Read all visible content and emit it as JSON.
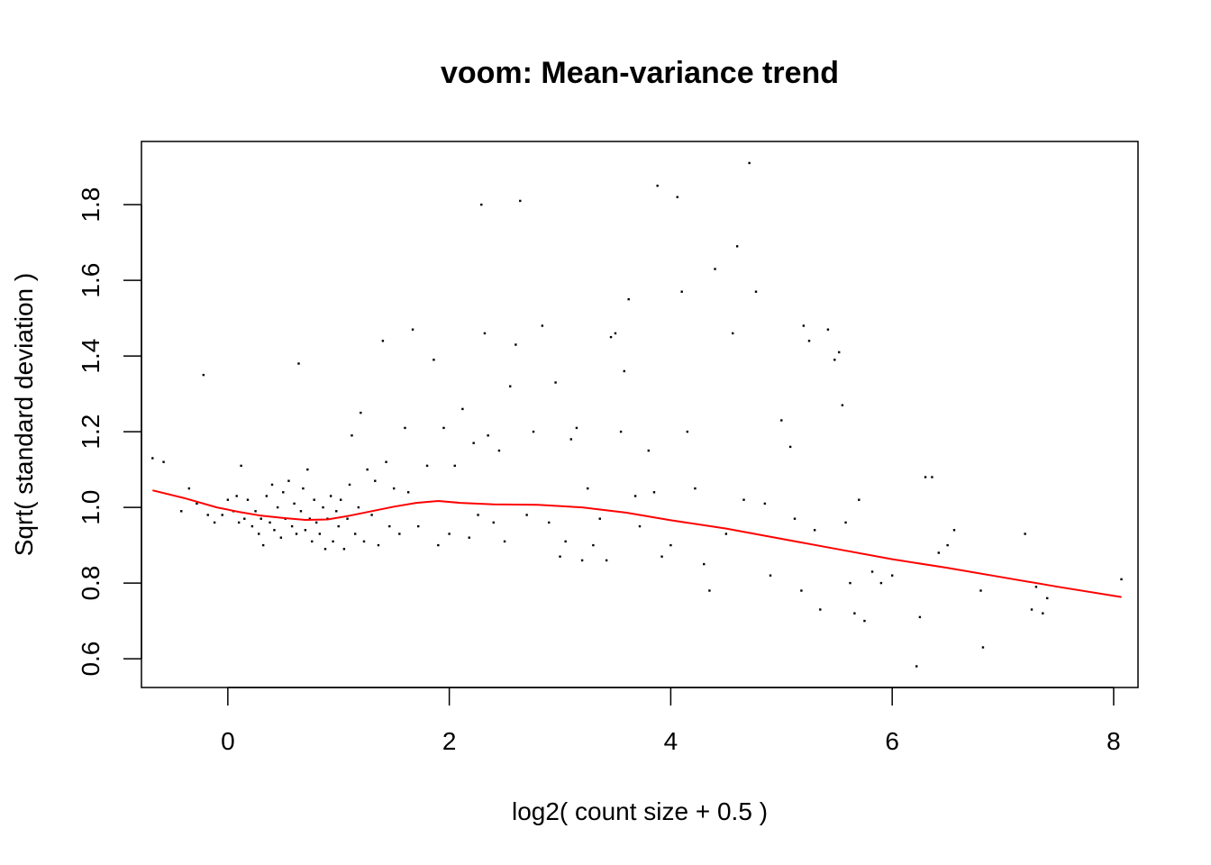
{
  "chart_data": {
    "type": "scatter",
    "title": "voom: Mean-variance trend",
    "xlabel": "log2( count size + 0.5 )",
    "ylabel": "Sqrt( standard deviation )",
    "xlim": [
      -0.78,
      8.22
    ],
    "ylim": [
      0.524,
      1.967
    ],
    "x_ticks": [
      0,
      2,
      4,
      6,
      8
    ],
    "y_ticks": [
      0.6,
      0.8,
      1.0,
      1.2,
      1.4,
      1.6,
      1.8
    ],
    "x_tick_labels": [
      "0",
      "2",
      "4",
      "6",
      "8"
    ],
    "y_tick_labels": [
      "0.6",
      "0.8",
      "1.0",
      "1.2",
      "1.4",
      "1.6",
      "1.8"
    ],
    "grid": false,
    "legend": "none",
    "colors": {
      "points": "#000000",
      "trend": "#ff0000"
    },
    "points": [
      [
        -0.68,
        1.13
      ],
      [
        -0.58,
        1.12
      ],
      [
        -0.42,
        0.99
      ],
      [
        -0.35,
        1.05
      ],
      [
        -0.28,
        1.01
      ],
      [
        -0.22,
        1.35
      ],
      [
        -0.18,
        0.98
      ],
      [
        -0.12,
        0.96
      ],
      [
        -0.05,
        0.98
      ],
      [
        0.0,
        1.02
      ],
      [
        0.05,
        0.99
      ],
      [
        0.08,
        1.03
      ],
      [
        0.1,
        0.96
      ],
      [
        0.12,
        1.11
      ],
      [
        0.15,
        0.97
      ],
      [
        0.18,
        1.02
      ],
      [
        0.22,
        0.95
      ],
      [
        0.25,
        0.99
      ],
      [
        0.28,
        0.93
      ],
      [
        0.3,
        0.97
      ],
      [
        0.32,
        0.9
      ],
      [
        0.35,
        1.03
      ],
      [
        0.38,
        0.96
      ],
      [
        0.4,
        1.06
      ],
      [
        0.42,
        0.94
      ],
      [
        0.45,
        1.0
      ],
      [
        0.48,
        0.92
      ],
      [
        0.5,
        1.04
      ],
      [
        0.52,
        0.97
      ],
      [
        0.55,
        1.07
      ],
      [
        0.58,
        0.95
      ],
      [
        0.6,
        1.01
      ],
      [
        0.62,
        0.93
      ],
      [
        0.64,
        1.38
      ],
      [
        0.66,
        0.99
      ],
      [
        0.68,
        1.05
      ],
      [
        0.7,
        0.94
      ],
      [
        0.72,
        1.1
      ],
      [
        0.74,
        0.97
      ],
      [
        0.76,
        0.91
      ],
      [
        0.78,
        1.02
      ],
      [
        0.8,
        0.96
      ],
      [
        0.83,
        0.93
      ],
      [
        0.86,
        1.0
      ],
      [
        0.88,
        0.89
      ],
      [
        0.9,
        0.97
      ],
      [
        0.93,
        1.03
      ],
      [
        0.95,
        0.91
      ],
      [
        0.98,
        0.99
      ],
      [
        1.0,
        0.95
      ],
      [
        1.02,
        1.02
      ],
      [
        1.05,
        0.89
      ],
      [
        1.08,
        0.97
      ],
      [
        1.1,
        1.06
      ],
      [
        1.12,
        1.19
      ],
      [
        1.15,
        0.93
      ],
      [
        1.18,
        1.0
      ],
      [
        1.2,
        1.25
      ],
      [
        1.23,
        0.91
      ],
      [
        1.26,
        1.1
      ],
      [
        1.3,
        0.98
      ],
      [
        1.33,
        1.07
      ],
      [
        1.36,
        0.9
      ],
      [
        1.4,
        1.44
      ],
      [
        1.43,
        1.12
      ],
      [
        1.46,
        0.95
      ],
      [
        1.5,
        1.05
      ],
      [
        1.55,
        0.93
      ],
      [
        1.6,
        1.21
      ],
      [
        1.63,
        1.04
      ],
      [
        1.67,
        1.47
      ],
      [
        1.72,
        0.95
      ],
      [
        1.8,
        1.11
      ],
      [
        1.86,
        1.39
      ],
      [
        1.9,
        0.9
      ],
      [
        1.95,
        1.21
      ],
      [
        2.0,
        0.93
      ],
      [
        2.05,
        1.11
      ],
      [
        2.12,
        1.26
      ],
      [
        2.18,
        0.92
      ],
      [
        2.22,
        1.17
      ],
      [
        2.26,
        0.98
      ],
      [
        2.29,
        1.8
      ],
      [
        2.32,
        1.46
      ],
      [
        2.35,
        1.19
      ],
      [
        2.4,
        0.96
      ],
      [
        2.45,
        1.15
      ],
      [
        2.5,
        0.91
      ],
      [
        2.55,
        1.32
      ],
      [
        2.6,
        1.43
      ],
      [
        2.64,
        1.81
      ],
      [
        2.7,
        0.98
      ],
      [
        2.76,
        1.2
      ],
      [
        2.84,
        1.48
      ],
      [
        2.9,
        0.96
      ],
      [
        2.96,
        1.33
      ],
      [
        3.0,
        0.87
      ],
      [
        3.05,
        0.91
      ],
      [
        3.1,
        1.18
      ],
      [
        3.15,
        1.21
      ],
      [
        3.2,
        0.86
      ],
      [
        3.25,
        1.05
      ],
      [
        3.3,
        0.9
      ],
      [
        3.36,
        0.97
      ],
      [
        3.42,
        0.86
      ],
      [
        3.46,
        1.45
      ],
      [
        3.5,
        1.46
      ],
      [
        3.55,
        1.2
      ],
      [
        3.58,
        1.36
      ],
      [
        3.62,
        1.55
      ],
      [
        3.68,
        1.03
      ],
      [
        3.72,
        0.95
      ],
      [
        3.8,
        1.15
      ],
      [
        3.85,
        1.04
      ],
      [
        3.88,
        1.85
      ],
      [
        3.92,
        0.87
      ],
      [
        4.0,
        0.9
      ],
      [
        4.06,
        1.82
      ],
      [
        4.1,
        1.57
      ],
      [
        4.15,
        1.2
      ],
      [
        4.22,
        1.05
      ],
      [
        4.3,
        0.85
      ],
      [
        4.35,
        0.78
      ],
      [
        4.4,
        1.63
      ],
      [
        4.5,
        0.93
      ],
      [
        4.56,
        1.46
      ],
      [
        4.6,
        1.69
      ],
      [
        4.66,
        1.02
      ],
      [
        4.71,
        1.91
      ],
      [
        4.77,
        1.57
      ],
      [
        4.85,
        1.01
      ],
      [
        4.9,
        0.82
      ],
      [
        5.0,
        1.23
      ],
      [
        5.08,
        1.16
      ],
      [
        5.12,
        0.97
      ],
      [
        5.18,
        0.78
      ],
      [
        5.2,
        1.48
      ],
      [
        5.25,
        1.44
      ],
      [
        5.3,
        0.94
      ],
      [
        5.35,
        0.73
      ],
      [
        5.42,
        1.47
      ],
      [
        5.48,
        1.39
      ],
      [
        5.52,
        1.41
      ],
      [
        5.55,
        1.27
      ],
      [
        5.58,
        0.96
      ],
      [
        5.62,
        0.8
      ],
      [
        5.66,
        0.72
      ],
      [
        5.7,
        1.02
      ],
      [
        5.75,
        0.7
      ],
      [
        5.82,
        0.83
      ],
      [
        5.9,
        0.8
      ],
      [
        6.0,
        0.82
      ],
      [
        6.22,
        0.58
      ],
      [
        6.25,
        0.71
      ],
      [
        6.3,
        1.08
      ],
      [
        6.36,
        1.08
      ],
      [
        6.42,
        0.88
      ],
      [
        6.5,
        0.9
      ],
      [
        6.56,
        0.94
      ],
      [
        6.8,
        0.78
      ],
      [
        6.82,
        0.63
      ],
      [
        7.2,
        0.93
      ],
      [
        7.26,
        0.73
      ],
      [
        7.3,
        0.79
      ],
      [
        7.36,
        0.72
      ],
      [
        7.4,
        0.76
      ],
      [
        8.07,
        0.81
      ]
    ],
    "trend": [
      [
        -0.68,
        1.045
      ],
      [
        -0.4,
        1.025
      ],
      [
        -0.1,
        1.0
      ],
      [
        0.1,
        0.988
      ],
      [
        0.3,
        0.978
      ],
      [
        0.5,
        0.972
      ],
      [
        0.7,
        0.967
      ],
      [
        0.9,
        0.968
      ],
      [
        1.1,
        0.978
      ],
      [
        1.3,
        0.99
      ],
      [
        1.5,
        1.002
      ],
      [
        1.7,
        1.012
      ],
      [
        1.9,
        1.017
      ],
      [
        2.1,
        1.012
      ],
      [
        2.4,
        1.008
      ],
      [
        2.8,
        1.007
      ],
      [
        3.2,
        1.0
      ],
      [
        3.6,
        0.986
      ],
      [
        4.0,
        0.966
      ],
      [
        4.5,
        0.944
      ],
      [
        5.0,
        0.917
      ],
      [
        5.5,
        0.89
      ],
      [
        6.0,
        0.863
      ],
      [
        6.5,
        0.84
      ],
      [
        7.0,
        0.815
      ],
      [
        7.5,
        0.79
      ],
      [
        8.07,
        0.763
      ]
    ]
  }
}
